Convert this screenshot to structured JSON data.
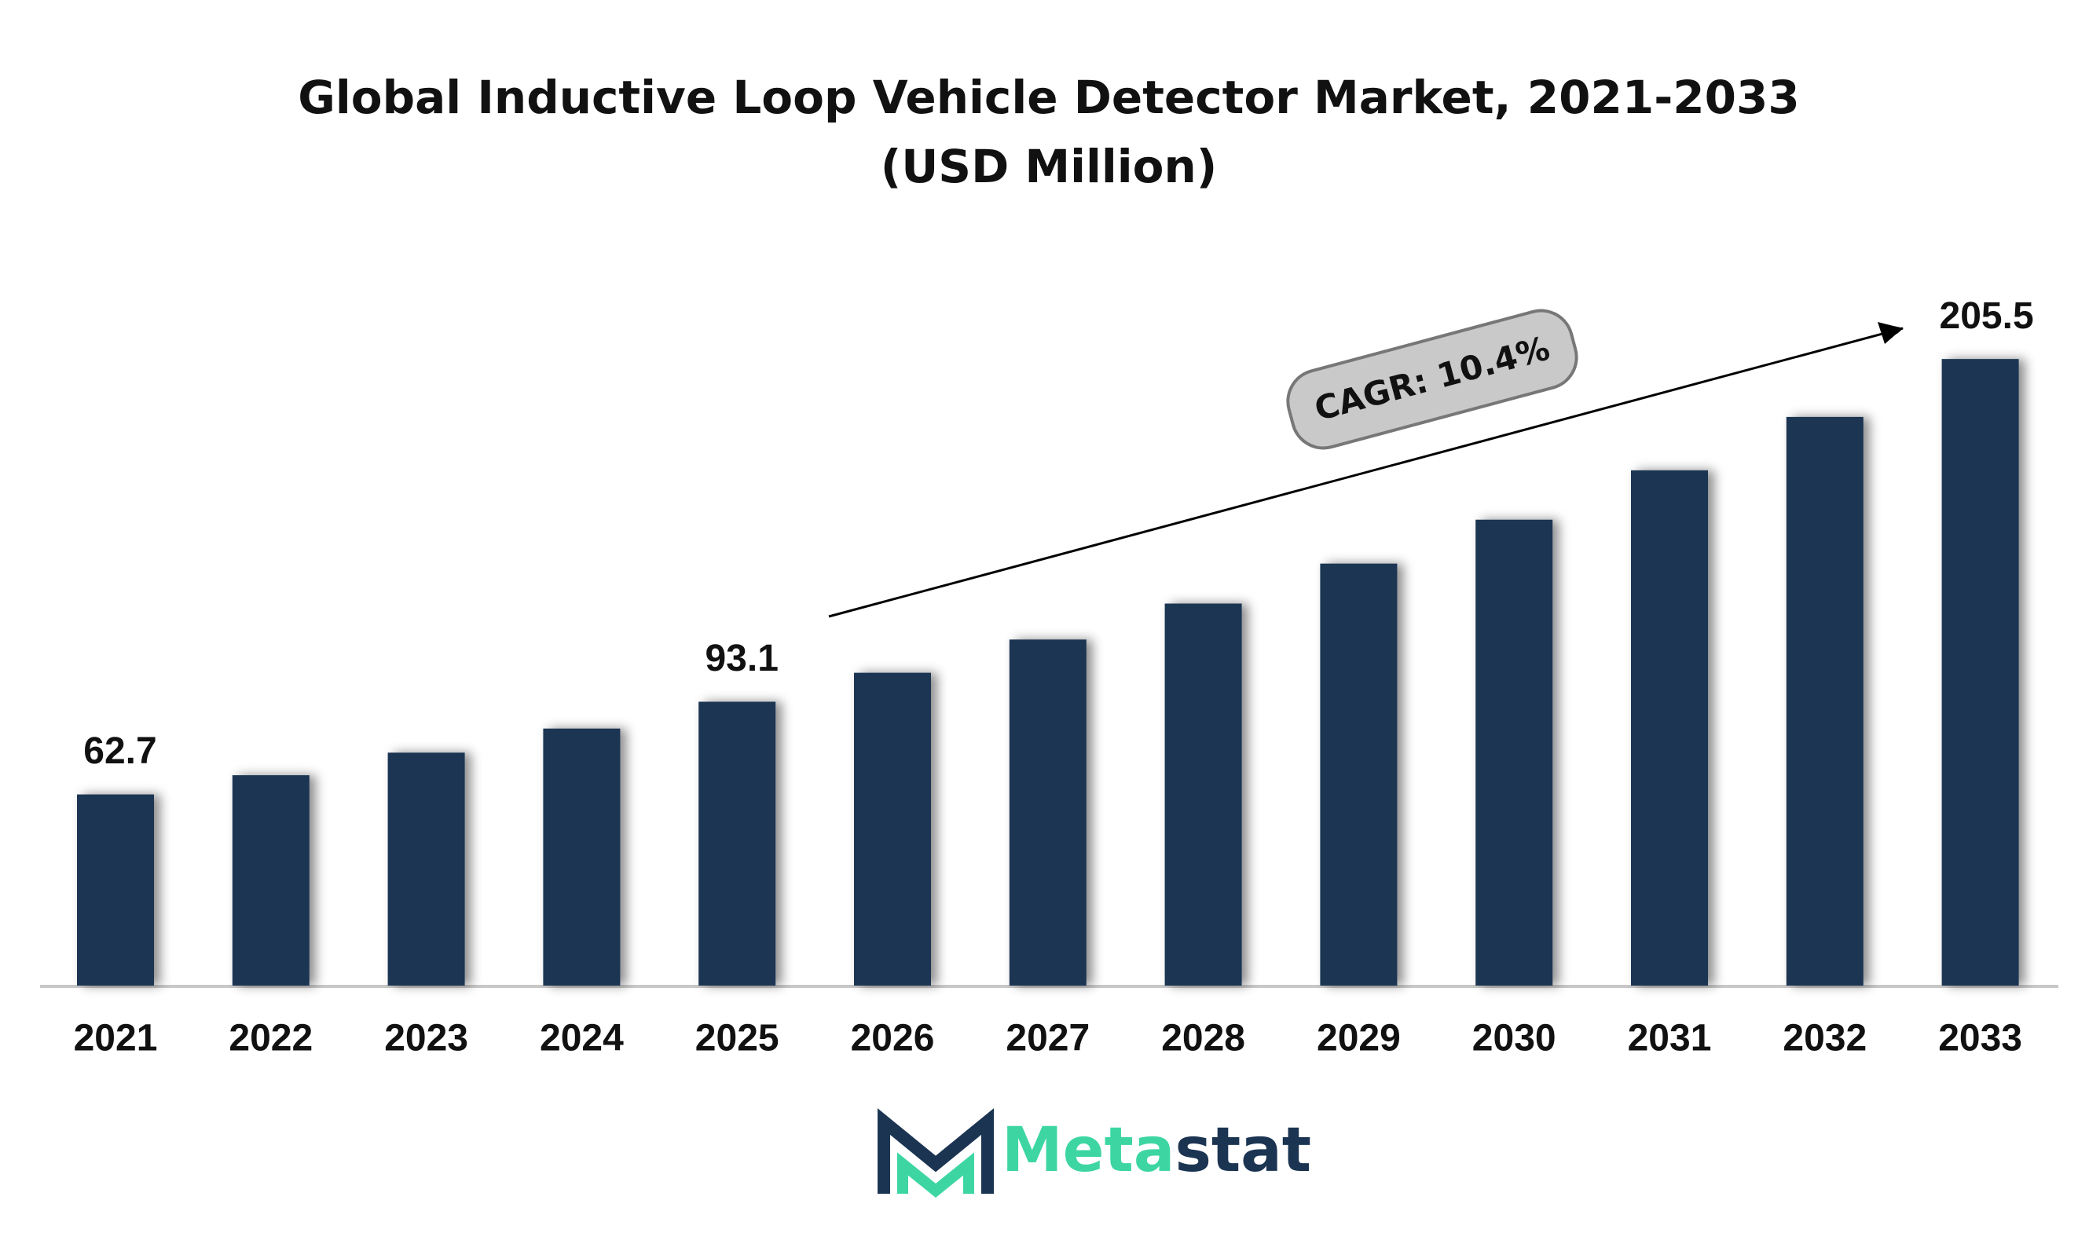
{
  "chart_data": {
    "type": "bar",
    "title": "Global Inductive Loop Vehicle Detector Market, 2021-2033 (USD Million)",
    "categories": [
      "2021",
      "2022",
      "2023",
      "2024",
      "2025",
      "2026",
      "2027",
      "2028",
      "2029",
      "2030",
      "2031",
      "2032",
      "2033"
    ],
    "values": [
      62.7,
      69.0,
      76.4,
      84.3,
      93.1,
      102.6,
      113.5,
      125.3,
      138.4,
      152.8,
      169.0,
      186.5,
      205.5
    ],
    "value_labels": [
      "62.7",
      null,
      null,
      null,
      "93.1",
      null,
      null,
      null,
      null,
      null,
      null,
      null,
      "205.5"
    ],
    "color": "#1b3452",
    "ylim": [
      0,
      230
    ],
    "annotation": "CAGR: 10.4%",
    "logo": [
      "Meta",
      "stat"
    ]
  }
}
